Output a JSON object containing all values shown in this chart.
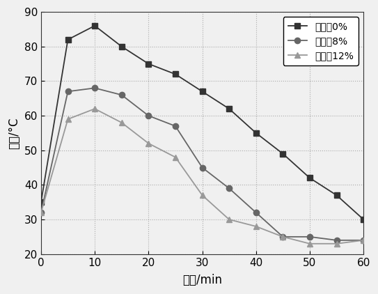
{
  "series": [
    {
      "label": "石墨烯0%",
      "marker": "s",
      "color": "#333333",
      "x": [
        0,
        5,
        10,
        15,
        20,
        25,
        30,
        35,
        40,
        45,
        50,
        55,
        60
      ],
      "y": [
        35,
        82,
        86,
        80,
        75,
        72,
        67,
        62,
        55,
        49,
        42,
        37,
        30
      ]
    },
    {
      "label": "石墨烯8%",
      "marker": "o",
      "color": "#666666",
      "x": [
        0,
        5,
        10,
        15,
        20,
        25,
        30,
        35,
        40,
        45,
        50,
        55,
        60
      ],
      "y": [
        32,
        67,
        68,
        66,
        60,
        57,
        45,
        39,
        32,
        25,
        25,
        24,
        24
      ]
    },
    {
      "label": "石墨烯12%",
      "marker": "^",
      "color": "#999999",
      "x": [
        0,
        5,
        10,
        15,
        20,
        25,
        30,
        35,
        40,
        45,
        50,
        55,
        60
      ],
      "y": [
        32,
        59,
        62,
        58,
        52,
        48,
        37,
        30,
        28,
        25,
        23,
        23,
        24
      ]
    }
  ],
  "xlabel": "时间/min",
  "ylabel": "温度/°C",
  "xlim": [
    0,
    60
  ],
  "ylim": [
    20,
    90
  ],
  "xticks": [
    0,
    10,
    20,
    30,
    40,
    50,
    60
  ],
  "yticks": [
    20,
    30,
    40,
    50,
    60,
    70,
    80,
    90
  ],
  "background_color": "#f0f0f0",
  "plot_bg_color": "#f5f5f5",
  "legend_loc": "upper right",
  "label_fontsize": 12,
  "tick_fontsize": 11,
  "legend_fontsize": 10,
  "linewidth": 1.3,
  "markersize": 6
}
